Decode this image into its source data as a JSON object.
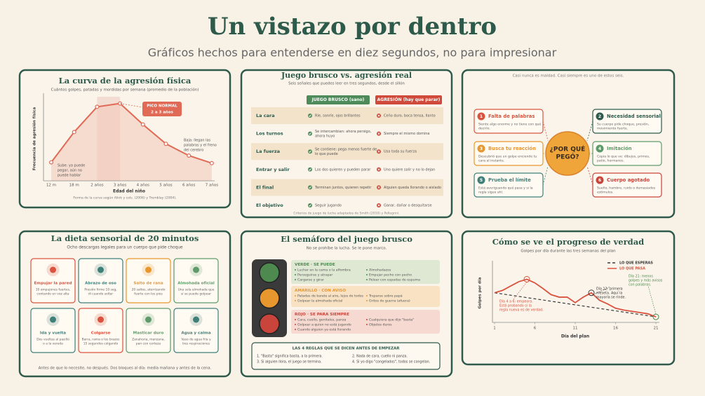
{
  "header": {
    "title": "Un vistazo por dentro",
    "subtitle": "Gráficos hechos para entenderse en diez segundos, no para impresionar"
  },
  "chart_data": [
    {
      "type": "line",
      "title": "La curva de la agresión física",
      "subtitle": "Cuántos golpes, patadas y mordidas por semana (promedio de la población)",
      "y_label": "Frecuencia de agresión física",
      "x_label": "Edad del niño",
      "source": "Forma de la curva según Alink y cols. (2006) y Tremblay (2004).",
      "categories": [
        "12 m",
        "18 m",
        "2 años",
        "3 años",
        "4 años",
        "5 años",
        "6 años",
        "7 años"
      ],
      "values": [
        22,
        58,
        88,
        92,
        67,
        44,
        30,
        21
      ],
      "color": "#e06a55",
      "ylim": [
        0,
        100
      ],
      "peak_label": [
        "PICO NORMAL",
        "2 a 3 años"
      ],
      "rise_note": [
        "Sube: ya puede",
        "pegar, aún no",
        "puede hablar"
      ],
      "fall_note": [
        "Baja: llegan las",
        "palabras y el freno",
        "del cerebro"
      ]
    },
    {
      "type": "line",
      "title": "Cómo se ve el progreso de verdad",
      "subtitle": "Golpes por día durante las tres semanas del plan",
      "y_label": "Golpes por día",
      "x_label": "Día del plan",
      "x": [
        1,
        2,
        3,
        4,
        5,
        6,
        7,
        8,
        9,
        10,
        11,
        12,
        13,
        14,
        15,
        16,
        17,
        18,
        19,
        20,
        21
      ],
      "xlim": [
        1,
        21
      ],
      "xticks": [
        1,
        6,
        11,
        16,
        21
      ],
      "ylim": [
        0,
        10
      ],
      "series": [
        {
          "name": "LO QUE ESPERAS",
          "color": "#3a3a3a",
          "x": [
            1,
            21
          ],
          "values": [
            4.8,
            0.9
          ]
        },
        {
          "name": "LO QUE PASA",
          "color": "#d9533f",
          "values": [
            4.8,
            5.2,
            5.9,
            6.6,
            7.0,
            6.4,
            5.5,
            4.5,
            4.1,
            4.1,
            3.2,
            4.1,
            4.8,
            3.6,
            3.0,
            2.3,
            2.0,
            1.8,
            1.6,
            1.4,
            0.9
          ]
        }
      ],
      "notes": [
        {
          "text": [
            "Día 4 a 6: empeora.",
            "Está probando si la",
            "regla nueva es de verdad."
          ],
          "color": "#d9533f"
        },
        {
          "text": [
            "Día 12: primera",
            "meseta. Aquí la",
            "mayoría se rinde."
          ],
          "color": "#3a3a3a"
        },
        {
          "text": [
            "Día 21: menos",
            "golpes y más avisos",
            "con palabras."
          ],
          "color": "#4e8a4f"
        }
      ]
    }
  ],
  "table": {
    "title": "Juego brusco vs. agresión real",
    "subtitle": "Seis señales que puedes leer en tres segundos, desde el sillón",
    "headers": [
      "JUEGO BRUSCO (sano)",
      "AGRESIÓN (hay que parar)"
    ],
    "rows": [
      {
        "label": "La cara",
        "play": [
          "Ríe, sonríe, ojos brillantes"
        ],
        "aggression": [
          "Ceño duro, boca tensa, llanto"
        ]
      },
      {
        "label": "Los turnos",
        "play": [
          "Se intercambian: ahora persigo,",
          "ahora huyo"
        ],
        "aggression": [
          "Siempre el mismo domina"
        ]
      },
      {
        "label": "La fuerza",
        "play": [
          "Se contiene: pega menos fuerte de",
          "lo que puede"
        ],
        "aggression": [
          "Usa toda su fuerza"
        ]
      },
      {
        "label": "Entrar y salir",
        "play": [
          "Los dos quieren y pueden parar"
        ],
        "aggression": [
          "Uno quiere salir y no lo dejan"
        ]
      },
      {
        "label": "El final",
        "play": [
          "Terminan juntos, quieren repetir"
        ],
        "aggression": [
          "Alguien queda llorando o aislado"
        ]
      },
      {
        "label": "El objetivo",
        "play": [
          "Seguir jugando"
        ],
        "aggression": [
          "Ganar, dañar o desquitarse"
        ]
      }
    ],
    "footer": "Criterios de juego de lucha adaptados de Smith (2010) y Pellegrini."
  },
  "diagram": {
    "note": "Casi nunca es maldad. Casi siempre es uno de estos seis.",
    "center": [
      "¿POR QUÉ",
      "PEGÓ?"
    ],
    "nodes": [
      {
        "number": "1",
        "title": "Falta de palabras",
        "desc": [
          "Siente algo enorme y no tiene con qué",
          "decirlo."
        ],
        "color": "#d9533f"
      },
      {
        "number": "2",
        "title": "Necesidad sensorial",
        "desc": [
          "Su cuerpo pide choque, presión,",
          "movimiento fuerte."
        ],
        "color": "#2f5a4c"
      },
      {
        "number": "3",
        "title": "Busca tu reacción",
        "desc": [
          "Descubrió que un golpe enciende tu",
          "cara al instante."
        ],
        "color": "#e8962e"
      },
      {
        "number": "4",
        "title": "Imitación",
        "desc": [
          "Copia lo que ve: dibujos, primos,",
          "patio, hermanos."
        ],
        "color": "#5f9a6a"
      },
      {
        "number": "5",
        "title": "Prueba el límite",
        "desc": [
          "Está averiguando qué pasa y si la",
          "regla sigue ahí."
        ],
        "color": "#3f7f7a"
      },
      {
        "number": "6",
        "title": "Cuerpo agotado",
        "desc": [
          "Sueño, hambre, ruido o demasiados",
          "estímulos."
        ],
        "color": "#c9443a"
      }
    ]
  },
  "sensory_diet": {
    "title": "La dieta sensorial de 20 minutos",
    "subtitle": "Ocho descargas legales para un cuerpo que pide choque",
    "cards": [
      {
        "name": "Empujar la pared",
        "desc": [
          "10 empujones fuertes,",
          "contando en voz alta"
        ],
        "color": "#d9533f"
      },
      {
        "name": "Abrazo de oso",
        "desc": [
          "Presión firme 10 seg,",
          "di cuando soltar"
        ],
        "color": "#3f7f7a"
      },
      {
        "name": "Salto de rana",
        "desc": [
          "20 saltos, aterrizando",
          "fuerte con los pies"
        ],
        "color": "#e8962e"
      },
      {
        "name": "Almohada oficial",
        "desc": [
          "Una sola almohada que",
          "sí se puede golpear"
        ],
        "color": "#5f9a6a"
      },
      {
        "name": "Ida y vuelta",
        "desc": [
          "Dos vueltas al pasillo",
          "o a la vereda"
        ],
        "color": "#3f7f7a"
      },
      {
        "name": "Colgarse",
        "desc": [
          "Barra, rama o los brazos",
          "15 segundos colgando"
        ],
        "color": "#d9533f"
      },
      {
        "name": "Masticar duro",
        "desc": [
          "Zanahoria, manzana,",
          "pan con corteza"
        ],
        "color": "#5f9a6a"
      },
      {
        "name": "Agua y calma",
        "desc": [
          "Vaso de agua fría y",
          "tres respiraciones"
        ],
        "color": "#3f7f7a"
      }
    ],
    "footer": "Antes de que lo necesite, no después. Dos bloques al día: media mañana y antes de la cena."
  },
  "traffic_light": {
    "title": "El semáforo del juego brusco",
    "subtitle": "No se prohíbe la lucha. Se le pone marco.",
    "levels": [
      {
        "heading": "VERDE · SE PUEDE",
        "color": "#4e8a4f",
        "bg": "#dfe8d3",
        "left": [
          "Luchar en la cama o la alfombra",
          "Perseguirse y atrapar",
          "Cargarse y girar"
        ],
        "right": [
          "Almohadazos",
          "Empujar pecho con pecho",
          "Pelear con espadas de espuma"
        ]
      },
      {
        "heading": "AMARILLO · CON AVISO",
        "color": "#e8962e",
        "bg": "#f8e2c3",
        "left": [
          "Patadas de karate al aire, lejos de todos",
          "Golpear la almohada oficial"
        ],
        "right": [
          "Treparse sobre papá",
          "Gritos de guerra (afuera)"
        ]
      },
      {
        "heading": "ROJO · SE PARA SIEMPRE",
        "color": "#c9443a",
        "bg": "#f6d9d0",
        "left": [
          "Cara, cuello, genitales, panza",
          "Golpear a quien no está jugando",
          "Cuando alguien ya está llorando"
        ],
        "right": [
          "Cualquiera que dijo \"basta\"",
          "Objetos duros"
        ]
      }
    ],
    "rules_title": "LAS 4 REGLAS QUE SE DICEN ANTES DE EMPEZAR",
    "rules": [
      "1. \"Basta\" significa basta, a la primera.",
      "2. Nada de cara, cuello ni panza.",
      "3. Si alguien llora, el juego se termina.",
      "4. Si yo digo \"congelados\", todos se congelan."
    ]
  }
}
